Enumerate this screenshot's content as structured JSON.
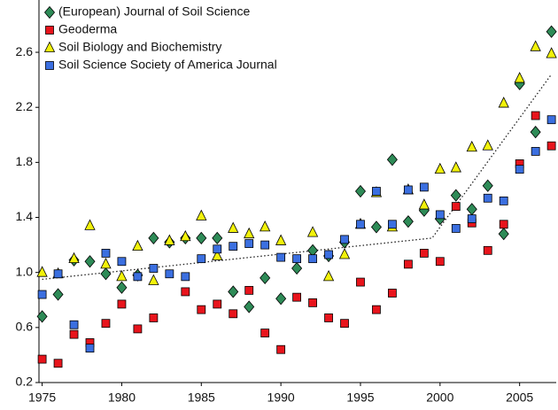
{
  "chart_data": {
    "type": "scatter",
    "x": [
      1975,
      1976,
      1977,
      1978,
      1979,
      1980,
      1981,
      1982,
      1983,
      1984,
      1985,
      1986,
      1987,
      1988,
      1989,
      1990,
      1991,
      1992,
      1993,
      1994,
      1995,
      1996,
      1997,
      1998,
      1999,
      2000,
      2001,
      2002,
      2003,
      2004,
      2005,
      2006,
      2007
    ],
    "series": [
      {
        "name": "(European) Journal of Soil Science",
        "color": "#2e8b57",
        "marker": "diamond",
        "values": [
          0.68,
          0.84,
          1.09,
          1.08,
          0.99,
          0.89,
          0.98,
          1.25,
          1.22,
          1.25,
          1.25,
          1.25,
          0.86,
          0.75,
          0.96,
          0.81,
          1.03,
          1.16,
          1.12,
          1.22,
          1.59,
          1.33,
          1.82,
          1.37,
          1.45,
          1.39,
          1.56,
          1.46,
          1.63,
          1.28,
          2.37,
          2.02,
          2.75
        ]
      },
      {
        "name": "Geoderma",
        "color": "#e8141c",
        "marker": "square",
        "values": [
          0.37,
          0.34,
          0.55,
          0.49,
          0.63,
          0.77,
          0.59,
          0.67,
          null,
          0.86,
          0.73,
          0.77,
          0.7,
          0.87,
          0.56,
          0.44,
          0.82,
          0.78,
          0.67,
          0.63,
          0.93,
          0.73,
          0.85,
          1.06,
          1.14,
          1.08,
          1.48,
          1.36,
          1.16,
          1.35,
          1.79,
          2.14,
          1.92
        ]
      },
      {
        "name": "Soil Biology and Biochemistry",
        "color": "#f2f20a",
        "marker": "triangle",
        "values": [
          1.0,
          0.99,
          1.1,
          1.34,
          1.06,
          0.97,
          1.19,
          0.94,
          1.23,
          1.26,
          1.41,
          1.12,
          1.32,
          1.28,
          1.33,
          1.23,
          null,
          1.29,
          0.97,
          1.13,
          1.35,
          1.58,
          1.33,
          1.6,
          1.49,
          1.75,
          1.76,
          1.91,
          1.92,
          2.23,
          2.41,
          2.64,
          2.59
        ]
      },
      {
        "name": "Soil Science Society of America Journal",
        "color": "#3b6fe0",
        "marker": "square",
        "values": [
          0.84,
          0.99,
          0.62,
          0.45,
          1.14,
          1.08,
          0.97,
          1.03,
          0.99,
          0.97,
          1.1,
          1.17,
          1.19,
          1.21,
          1.2,
          1.11,
          1.1,
          1.1,
          1.13,
          1.24,
          1.35,
          1.59,
          1.35,
          1.6,
          1.62,
          1.42,
          1.32,
          1.39,
          1.54,
          1.52,
          1.75,
          1.88,
          2.11
        ]
      }
    ],
    "trend_line": {
      "x": [
        1975,
        1999.5,
        2007
      ],
      "values": [
        0.95,
        1.25,
        2.44
      ]
    },
    "xlim": [
      1974.8,
      2007.3
    ],
    "xticks": [
      1975,
      1980,
      1985,
      1990,
      1995,
      2000,
      2005
    ],
    "ylim": [
      0.2,
      2.98
    ],
    "yticks": [
      {
        "value": 0.2,
        "label": "0.2"
      },
      {
        "value": 0.6,
        "label": "0.6"
      },
      {
        "value": 1.0,
        "label": "1.0"
      },
      {
        "value": 1.4,
        "label": "1.4"
      },
      {
        "value": 1.8,
        "label": "1.8"
      },
      {
        "value": 2.2,
        "label": "2.2"
      },
      {
        "value": 2.6,
        "label": "2.6"
      }
    ],
    "legend": "upper-left",
    "grid": false
  }
}
